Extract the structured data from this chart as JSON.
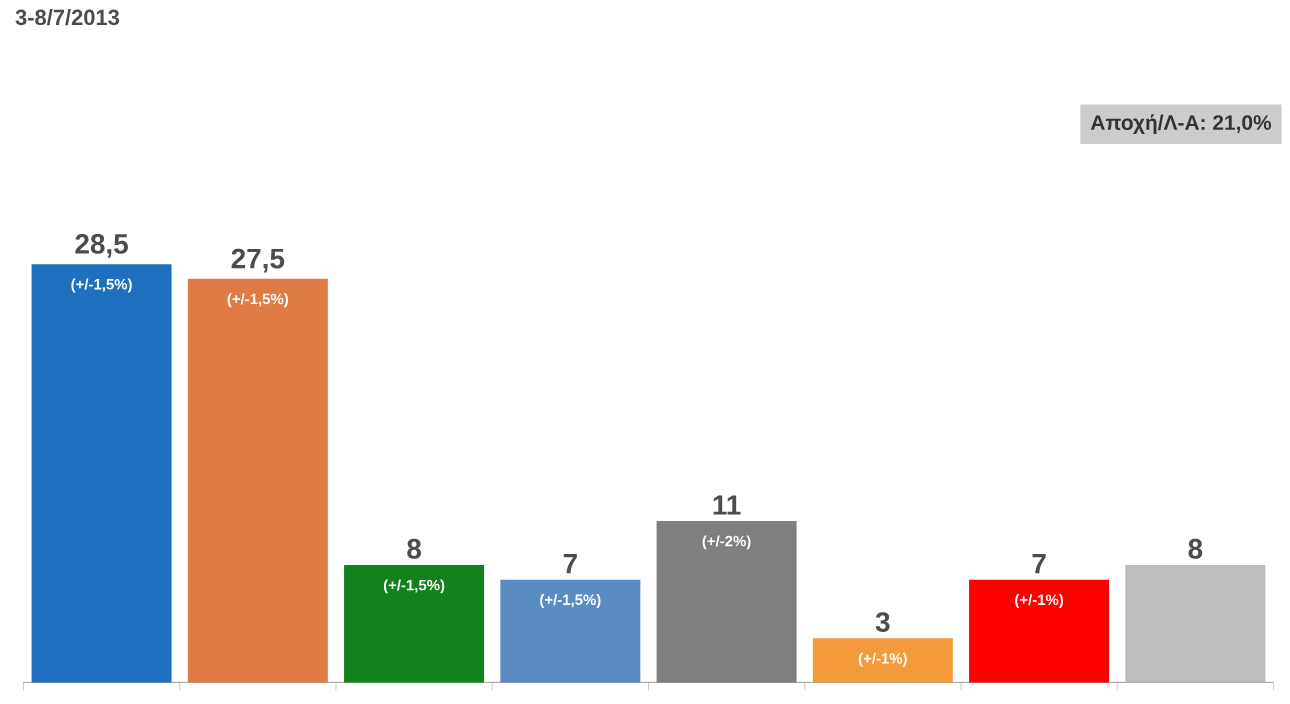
{
  "chart_data": {
    "type": "bar",
    "title": "3-8/7/2013",
    "categories": [
      null,
      null,
      null,
      null,
      null,
      null,
      null,
      null
    ],
    "values": [
      28.5,
      27.5,
      8,
      7,
      11,
      3,
      7,
      8
    ],
    "colors": [
      "#1f6fc0",
      "#e07b45",
      "#12821c",
      "#5a8cc2",
      "#7f7f7f",
      "#f59a3a",
      "#ff0000",
      "#bdbdbd"
    ],
    "value_labels": [
      "28,5",
      "27,5",
      "8",
      "7",
      "11",
      "3",
      "7",
      "8"
    ],
    "annotations": [
      "Αποχή/Λ-Α: 21,0%",
      "(+/-1,5%)",
      "(+/-1,5%)",
      "(+/-1,5%)",
      "(+/-1,5%)",
      "(+/-2%)",
      "(+/-1%)",
      "(+/-1%)"
    ]
  }
}
